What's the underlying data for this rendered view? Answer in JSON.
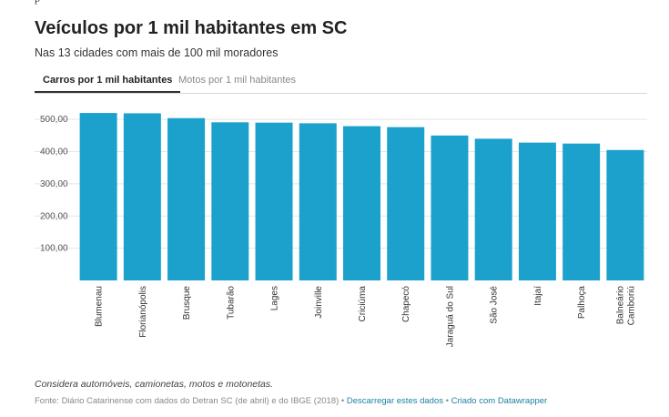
{
  "top_char": "p",
  "title": "Veículos por 1 mil habitantes em SC",
  "subtitle": "Nas 13 cidades com mais de 100 mil moradores",
  "tabs": [
    {
      "label": "Carros por 1 mil habitantes",
      "active": true
    },
    {
      "label": "Motos por 1 mil habitantes",
      "active": false
    }
  ],
  "chart_data": {
    "type": "bar",
    "categories": [
      "Blumenau",
      "Florianópolis",
      "Brusque",
      "Tubarão",
      "Lages",
      "Joinville",
      "Criciúma",
      "Chapecó",
      "Jaraguá do Sul",
      "São José",
      "Itajaí",
      "Palhoça",
      "Balneário Camboriú"
    ],
    "category_lines": [
      [
        "Blumenau"
      ],
      [
        "Florianópolis"
      ],
      [
        "Brusque"
      ],
      [
        "Tubarão"
      ],
      [
        "Lages"
      ],
      [
        "Joinville"
      ],
      [
        "Criciúma"
      ],
      [
        "Chapecó"
      ],
      [
        "Jaraguá do Sul"
      ],
      [
        "São José"
      ],
      [
        "Itajaí"
      ],
      [
        "Palhoça"
      ],
      [
        "Balneário",
        "Camboriú"
      ]
    ],
    "values": [
      520,
      519,
      504,
      491,
      490,
      488,
      479,
      476,
      450,
      440,
      428,
      425,
      405
    ],
    "ylim": [
      0,
      550
    ],
    "yticks": [
      100,
      200,
      300,
      400,
      500
    ],
    "ytick_labels": [
      "100,00",
      "200,00",
      "300,00",
      "400,00",
      "500,00"
    ],
    "grid": true,
    "bar_color": "#1ba1cc",
    "title": "Veículos por 1 mil habitantes em SC",
    "xlabel": "",
    "ylabel": ""
  },
  "note": "Considera automóveis, camionetas, motos e motonetas.",
  "footer": {
    "source": "Fonte: Diário Catarinense com dados do Detran SC (de abril) e do IBGE (2018)",
    "sep1": " • ",
    "download": "Descarregar estes dados",
    "sep2": " • ",
    "made_with": "Criado com Datawrapper"
  },
  "colors": {
    "bar": "#1ba1cc",
    "link": "#1d81a2",
    "grid": "#e5e5e5"
  }
}
